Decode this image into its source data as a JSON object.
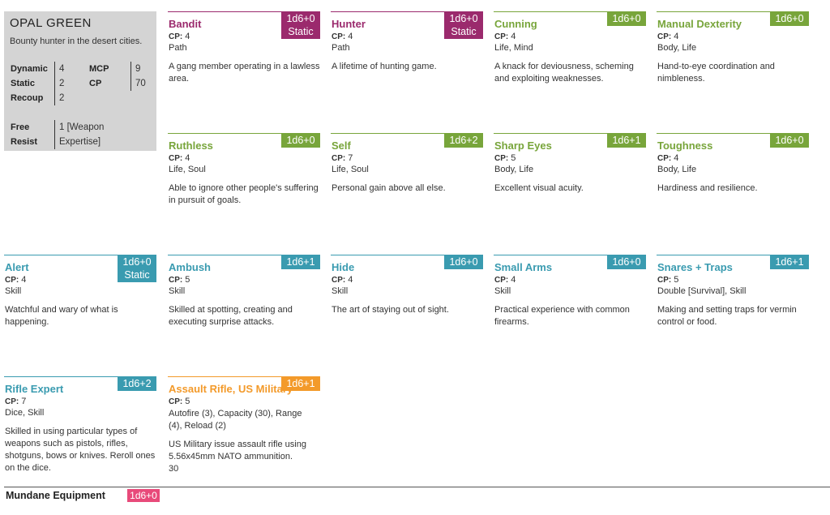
{
  "character": {
    "name": "OPAL GREEN",
    "description": "Bounty hunter in the desert cities.",
    "stats": {
      "dynamic_label": "Dynamic",
      "dynamic": "4",
      "static_label": "Static",
      "static": "2",
      "recoup_label": "Recoup",
      "recoup": "2",
      "mcp_label": "MCP",
      "mcp": "9",
      "cp_label": "CP",
      "cp": "70",
      "free_label": "Free",
      "resist_label": "Resist",
      "free_line1": "1 [Weapon",
      "free_line2": "Expertise]"
    }
  },
  "colors": {
    "path": "#9b2a6d",
    "green": "#78a53b",
    "teal": "#3a9bb0",
    "orange": "#f39a2a",
    "equipment": "#e84a7a",
    "panel": "#d4d4d4"
  },
  "cards": [
    {
      "title": "Bandit",
      "badge1": "1d6+0",
      "badge2": "Static",
      "cp": "4",
      "tags": "Path",
      "desc1": "A gang member operating in a lawless",
      "desc2": "area."
    },
    {
      "title": "Hunter",
      "badge1": "1d6+0",
      "badge2": "Static",
      "cp": "4",
      "tags": "Path",
      "desc1": "A lifetime of hunting game."
    },
    {
      "title": "Cunning",
      "badge1": "1d6+0",
      "cp": "4",
      "tags": "Life, Mind",
      "desc1": "A knack for deviousness, scheming",
      "desc2": "and exploiting weaknesses."
    },
    {
      "title": "Manual Dexterity",
      "badge1": "1d6+0",
      "cp": "4",
      "tags": "Body, Life",
      "desc1": "Hand-to-eye coordination and",
      "desc2": "nimbleness."
    },
    {
      "title": "Ruthless",
      "badge1": "1d6+0",
      "cp": "4",
      "tags": "Life, Soul",
      "desc1": "Able to ignore other people's suffering",
      "desc2": "in pursuit of goals."
    },
    {
      "title": "Self",
      "badge1": "1d6+2",
      "cp": "7",
      "tags": "Life, Soul",
      "desc1": "Personal gain above all else."
    },
    {
      "title": "Sharp Eyes",
      "badge1": "1d6+1",
      "cp": "5",
      "tags": "Body, Life",
      "desc1": "Excellent visual acuity."
    },
    {
      "title": "Toughness",
      "badge1": "1d6+0",
      "cp": "4",
      "tags": "Body, Life",
      "desc1": "Hardiness and resilience."
    },
    {
      "title": "Alert",
      "badge1": "1d6+0",
      "badge2": "Static",
      "cp": "4",
      "tags": "Skill",
      "desc1": "Watchful and wary of what is",
      "desc2": "happening."
    },
    {
      "title": "Ambush",
      "badge1": "1d6+1",
      "cp": "5",
      "tags": "Skill",
      "desc1": "Skilled at spotting, creating and",
      "desc2": "executing surprise attacks."
    },
    {
      "title": "Hide",
      "badge1": "1d6+0",
      "cp": "4",
      "tags": "Skill",
      "desc1": "The art of staying out of sight."
    },
    {
      "title": "Small Arms",
      "badge1": "1d6+0",
      "cp": "4",
      "tags": "Skill",
      "desc1": "Practical experience with common",
      "desc2": "firearms."
    },
    {
      "title": "Snares + Traps",
      "badge1": "1d6+1",
      "cp": "5",
      "tags": "Double [Survival], Skill",
      "desc1": "Making and setting traps for vermin",
      "desc2": "control or food."
    },
    {
      "title": "Rifle Expert",
      "badge1": "1d6+2",
      "cp": "7",
      "tags": "Dice, Skill",
      "desc1": "Skilled in using particular types of",
      "desc2": "weapons such as pistols, rifles,",
      "desc3": "shotguns, bows or knives. Reroll ones",
      "desc4": "on the dice."
    },
    {
      "title": "Assault Rifle, US Military",
      "badge1": "1d6+1",
      "cp": "5",
      "tags1": "Autofire (3), Capacity (30), Range",
      "tags2": "(4), Reload (2)",
      "desc1": "US Military issue assault rifle using",
      "desc2": "5.56x45mm NATO ammunition.",
      "desc3": "30"
    }
  ],
  "cp_label": "CP:",
  "equipment": {
    "title": "Mundane Equipment",
    "badge": "1d6+0"
  }
}
